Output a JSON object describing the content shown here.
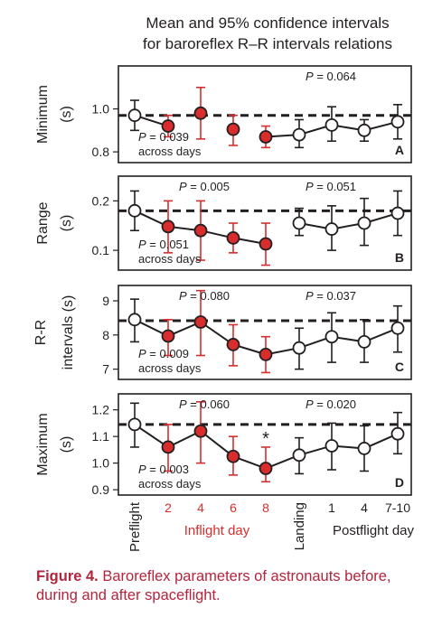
{
  "figure": {
    "title_line1": "Mean and 95% confidence intervals",
    "title_line2": "for baroreflex R–R intervals relations"
  },
  "colors": {
    "inflight": "#d92d2d",
    "text": "#231f20",
    "errorbar_inflight": "#d92d2d",
    "errorbar_other": "#231f20",
    "caption": "#b3243d"
  },
  "xaxis": {
    "ticks": [
      {
        "label": "Preflight",
        "group": "ground",
        "rotated": true
      },
      {
        "label": "2",
        "group": "inflight",
        "rotated": false
      },
      {
        "label": "4",
        "group": "inflight",
        "rotated": false
      },
      {
        "label": "6",
        "group": "inflight",
        "rotated": false
      },
      {
        "label": "8",
        "group": "inflight",
        "rotated": false
      },
      {
        "label": "Landing",
        "group": "ground",
        "rotated": true
      },
      {
        "label": "1",
        "group": "postflight",
        "rotated": false
      },
      {
        "label": "4",
        "group": "postflight",
        "rotated": false
      },
      {
        "label": "7-10",
        "group": "postflight",
        "rotated": false
      }
    ],
    "inflight_label": "Inflight day",
    "postflight_label": "Postflight day"
  },
  "chart_data": [
    {
      "type": "scatter",
      "panel_letter": "A",
      "ylabel": "Minimum (s)",
      "yticks": [
        "1.0",
        "0.8"
      ],
      "ytick_values": [
        1.0,
        0.8
      ],
      "ylim": [
        0.75,
        1.2
      ],
      "reference_line": 0.97,
      "p_inflight": "",
      "p_postflight": "P = 0.064",
      "p_across": "P = 0.039",
      "across_label": "across days",
      "asterisk_index": null,
      "x": [
        "Preflight",
        "2",
        "4",
        "6",
        "8",
        "Landing",
        "1",
        "4",
        "7-10"
      ],
      "values": [
        0.97,
        0.92,
        0.98,
        0.905,
        0.87,
        0.88,
        0.925,
        0.9,
        0.94
      ],
      "ci_low": [
        0.9,
        0.87,
        0.86,
        0.83,
        0.82,
        0.82,
        0.85,
        0.85,
        0.86
      ],
      "ci_high": [
        1.04,
        0.97,
        1.1,
        0.97,
        0.92,
        0.95,
        1.01,
        0.95,
        1.02
      ],
      "connect_segments": [
        [
          0,
          1
        ],
        [
          4,
          8
        ]
      ]
    },
    {
      "type": "scatter",
      "panel_letter": "B",
      "ylabel": "Range (s)",
      "yticks": [
        "0.2",
        "0.1"
      ],
      "ytick_values": [
        0.2,
        0.1
      ],
      "ylim": [
        0.06,
        0.25
      ],
      "reference_line": 0.18,
      "p_inflight": "P = 0.005",
      "p_postflight": "P = 0.051",
      "p_across": "P = 0.051",
      "across_label": "across days",
      "asterisk_index": null,
      "x": [
        "Preflight",
        "2",
        "4",
        "6",
        "8",
        "Landing",
        "1",
        "4",
        "7-10"
      ],
      "values": [
        0.18,
        0.148,
        0.14,
        0.125,
        0.113,
        0.155,
        0.143,
        0.155,
        0.175
      ],
      "ci_low": [
        0.14,
        0.095,
        0.08,
        0.095,
        0.07,
        0.13,
        0.1,
        0.11,
        0.13
      ],
      "ci_high": [
        0.22,
        0.2,
        0.2,
        0.155,
        0.155,
        0.185,
        0.19,
        0.205,
        0.22
      ],
      "connect_segments": [
        [
          0,
          4
        ],
        [
          5,
          8
        ]
      ]
    },
    {
      "type": "scatter",
      "panel_letter": "C",
      "ylabel": "R-R intervals (s)",
      "yticks": [
        "9",
        "8",
        "7"
      ],
      "ytick_values": [
        9,
        8,
        7
      ],
      "ylim": [
        6.7,
        9.45
      ],
      "reference_line": 8.42,
      "p_inflight": "P = 0.080",
      "p_postflight": "P = 0.037",
      "p_across": "P = 0.009",
      "across_label": "across days",
      "asterisk_index": null,
      "x": [
        "Preflight",
        "2",
        "4",
        "6",
        "8",
        "Landing",
        "1",
        "4",
        "7-10"
      ],
      "values": [
        8.45,
        7.97,
        8.38,
        7.72,
        7.43,
        7.62,
        7.95,
        7.8,
        8.2
      ],
      "ci_low": [
        7.8,
        7.4,
        7.4,
        7.1,
        6.9,
        7.0,
        7.2,
        7.2,
        7.5
      ],
      "ci_high": [
        9.05,
        8.45,
        9.3,
        8.3,
        7.95,
        8.2,
        8.65,
        8.45,
        8.85
      ],
      "connect_segments": [
        [
          0,
          4
        ],
        [
          4,
          8
        ]
      ]
    },
    {
      "type": "scatter",
      "panel_letter": "D",
      "ylabel": "Maximum (s)",
      "yticks": [
        "1.2",
        "1.1",
        "1.0",
        "0.9"
      ],
      "ytick_values": [
        1.2,
        1.1,
        1.0,
        0.9
      ],
      "ylim": [
        0.88,
        1.26
      ],
      "reference_line": 1.145,
      "p_inflight": "P = 0.060",
      "p_postflight": "P = 0.020",
      "p_across": "P = 0.003",
      "across_label": "across days",
      "asterisk_index": 4,
      "x": [
        "Preflight",
        "2",
        "4",
        "6",
        "8",
        "Landing",
        "1",
        "4",
        "7-10"
      ],
      "values": [
        1.145,
        1.06,
        1.12,
        1.025,
        0.98,
        1.03,
        1.065,
        1.055,
        1.11
      ],
      "ci_low": [
        1.06,
        0.97,
        1.0,
        0.955,
        0.93,
        0.96,
        0.975,
        0.97,
        1.035
      ],
      "ci_high": [
        1.225,
        1.145,
        1.23,
        1.1,
        1.06,
        1.095,
        1.15,
        1.14,
        1.19
      ],
      "connect_segments": [
        [
          0,
          4
        ],
        [
          4,
          8
        ]
      ]
    }
  ],
  "caption": {
    "label": "Figure 4.",
    "text": " Baroreflex parameters of astronauts before, during and after spaceflight."
  }
}
